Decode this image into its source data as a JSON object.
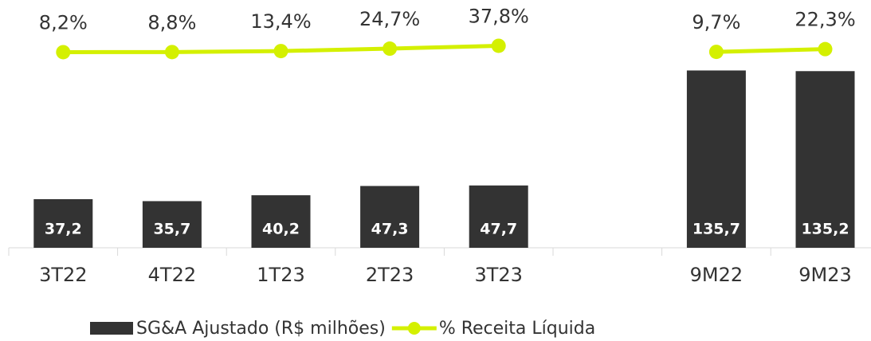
{
  "chart_data": {
    "type": "bar",
    "categories": [
      "3T22",
      "4T22",
      "1T23",
      "2T23",
      "3T23",
      null,
      "9M22",
      "9M23"
    ],
    "series": [
      {
        "name": "SG&A Ajustado (R$ milhões)",
        "type": "bar",
        "color": "#333333",
        "values": [
          37.2,
          35.7,
          40.2,
          47.3,
          47.7,
          null,
          135.7,
          135.2
        ],
        "value_labels": [
          "37,2",
          "35,7",
          "40,2",
          "47,3",
          "47,7",
          null,
          "135,7",
          "135,2"
        ]
      },
      {
        "name": "% Receita Líquida",
        "type": "line",
        "axis": "y2",
        "color": "#d4f000",
        "values": [
          8.2,
          8.8,
          13.4,
          24.7,
          37.8,
          null,
          9.7,
          22.3
        ],
        "value_labels": [
          "8,2%",
          "8,8%",
          "13,4%",
          "24,7%",
          "37,8%",
          null,
          "9,7%",
          "22,3%"
        ]
      }
    ],
    "ylim": [
      0,
      150
    ],
    "y2lim": [
      -900,
      10
    ]
  }
}
